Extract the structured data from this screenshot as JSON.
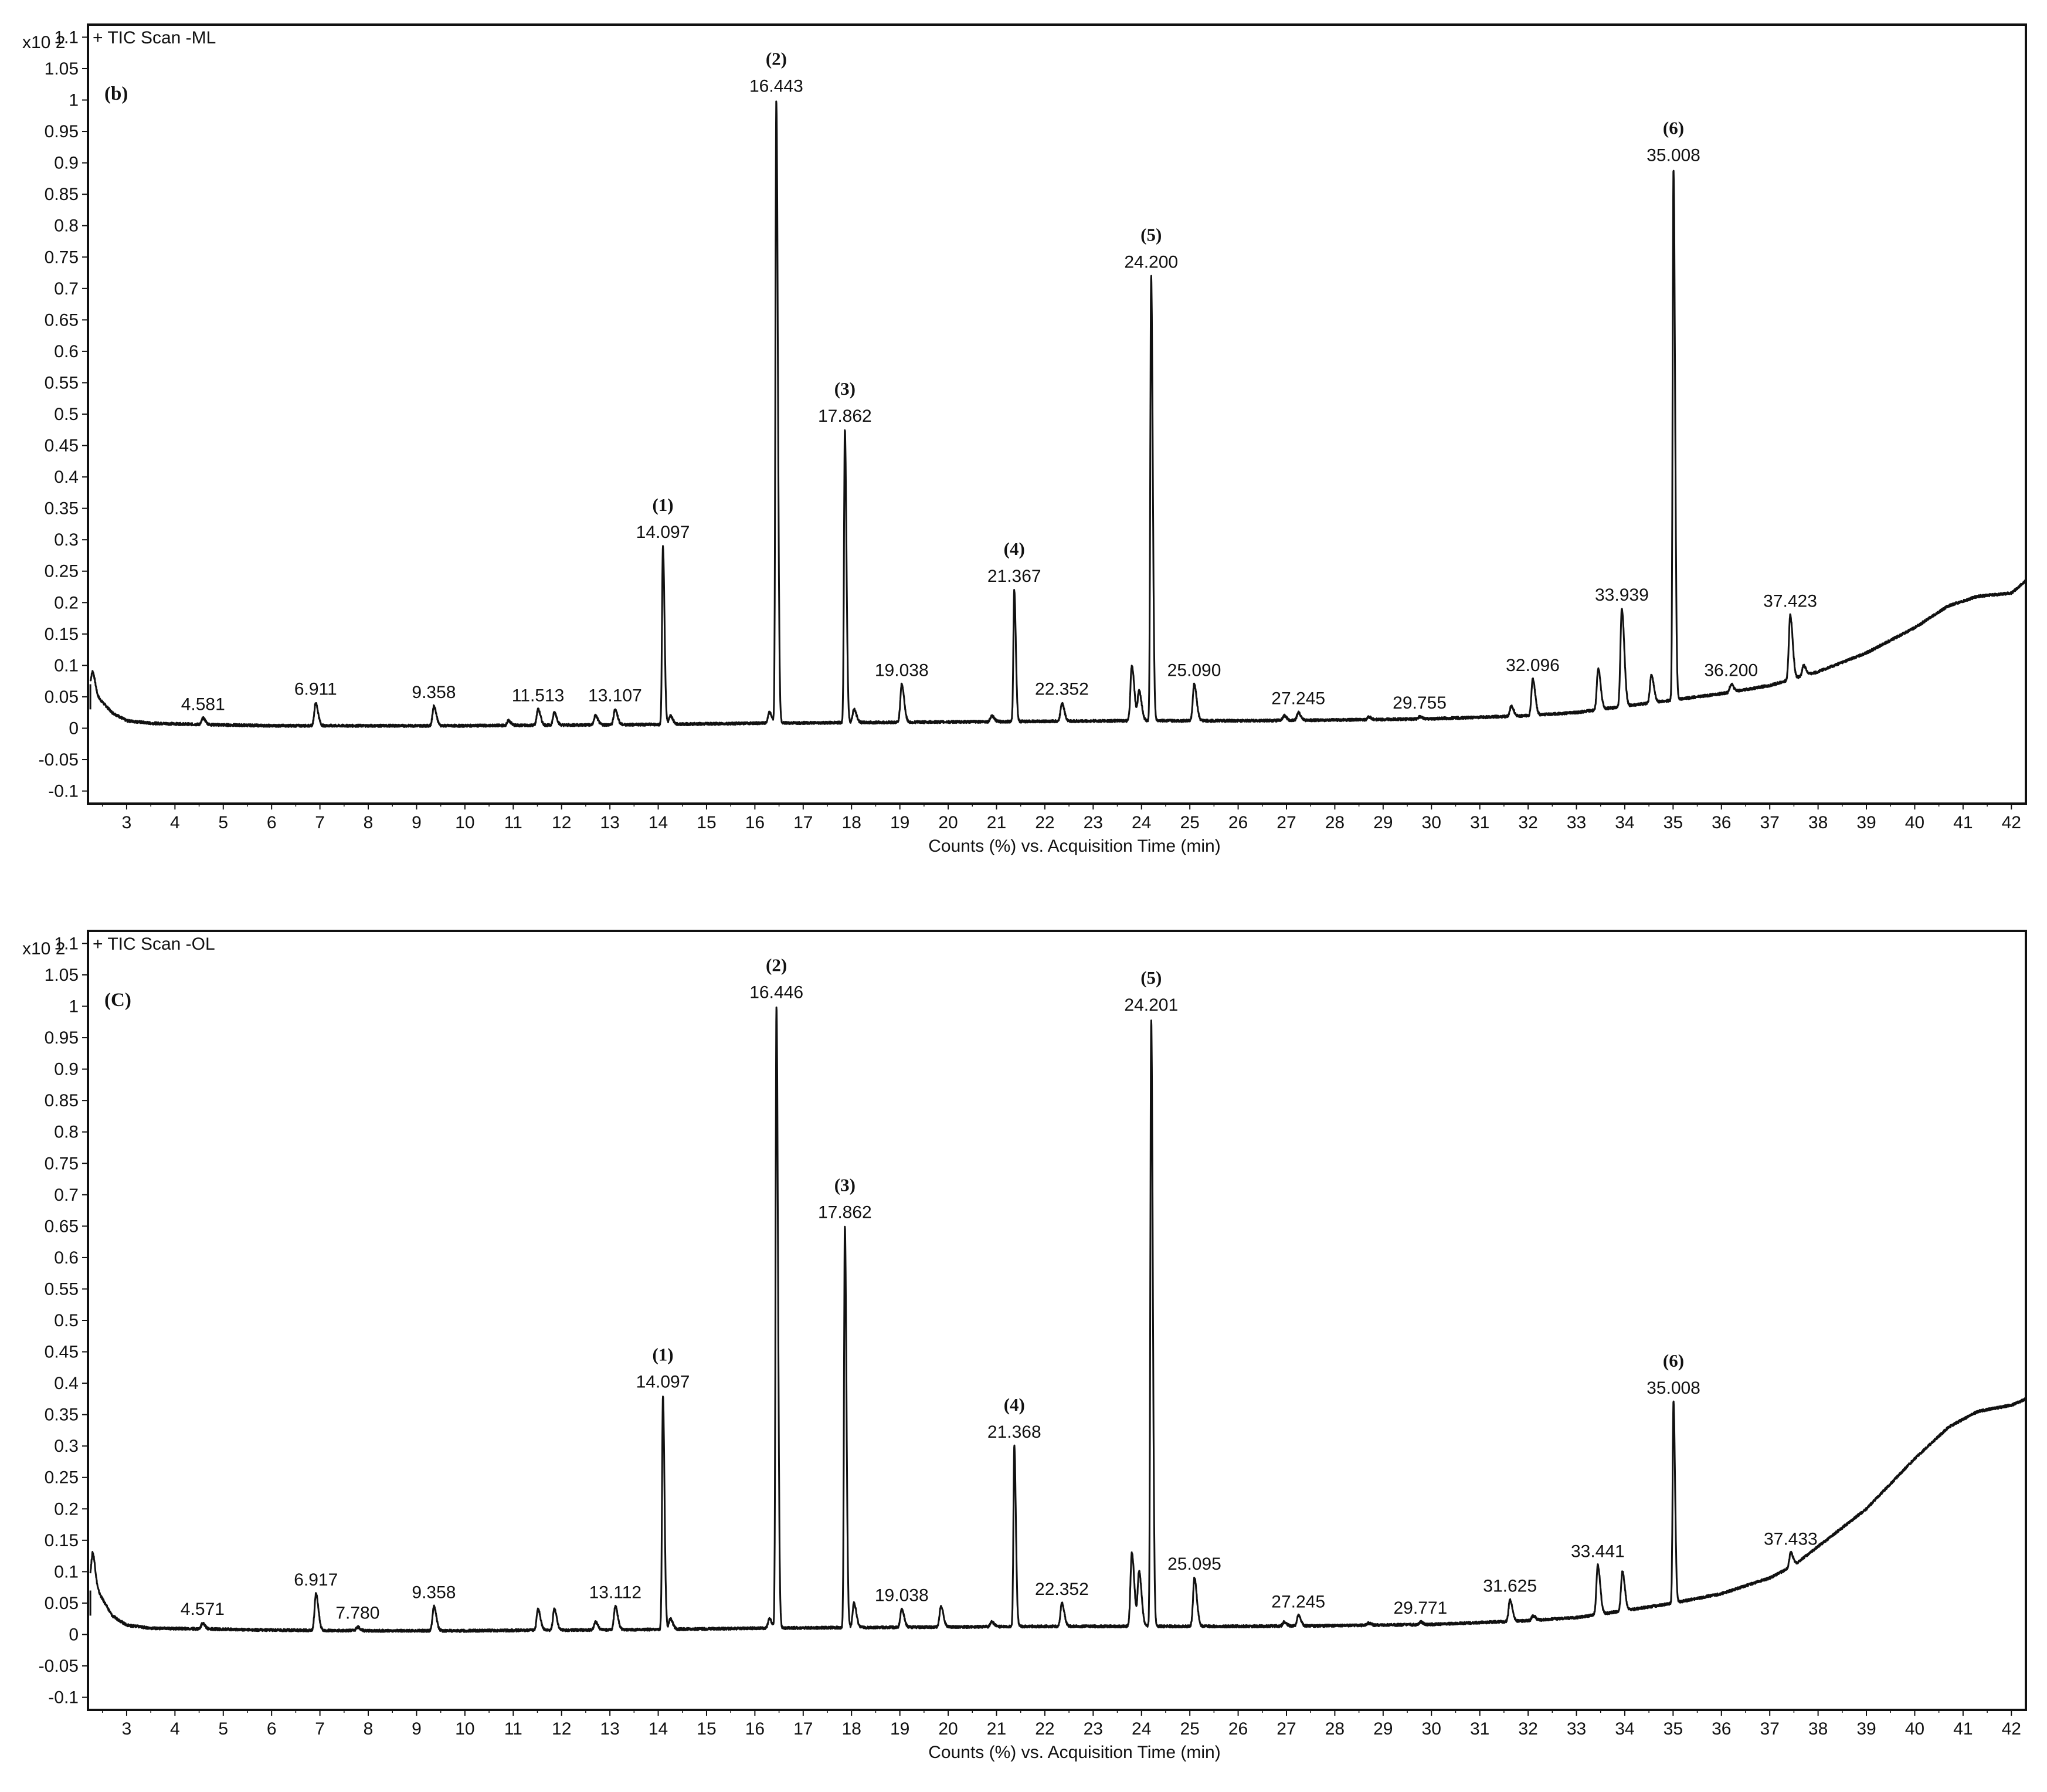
{
  "chart_data": [
    {
      "type": "line",
      "panel_tag": "(b)",
      "series_title": "+ TIC Scan -ML",
      "y_multiplier": "x10 2",
      "xlabel": "Counts (%) vs. Acquisition Time (min)",
      "xlim": [
        2.2,
        42.3
      ],
      "ylim": [
        -0.12,
        1.12
      ],
      "x_ticks": [
        3,
        4,
        5,
        6,
        7,
        8,
        9,
        10,
        11,
        12,
        13,
        14,
        15,
        16,
        17,
        18,
        19,
        20,
        21,
        22,
        23,
        24,
        25,
        26,
        27,
        28,
        29,
        30,
        31,
        32,
        33,
        34,
        35,
        36,
        37,
        38,
        39,
        40,
        41,
        42
      ],
      "y_ticks": [
        "1.1",
        "1.05",
        "1",
        "0.95",
        "0.9",
        "0.85",
        "0.8",
        "0.75",
        "0.7",
        "0.65",
        "0.6",
        "0.55",
        "0.5",
        "0.45",
        "0.4",
        "0.35",
        "0.3",
        "0.25",
        "0.2",
        "0.15",
        "0.1",
        "0.05",
        "0",
        "-0.05",
        "-0.1"
      ],
      "baseline": [
        [
          2.25,
          0.07
        ],
        [
          2.4,
          0.05
        ],
        [
          2.7,
          0.025
        ],
        [
          3.0,
          0.012
        ],
        [
          3.5,
          0.008
        ],
        [
          4.5,
          0.006
        ],
        [
          6.0,
          0.004
        ],
        [
          8.0,
          0.004
        ],
        [
          10.0,
          0.004
        ],
        [
          12.0,
          0.005
        ],
        [
          14.0,
          0.006
        ],
        [
          16.0,
          0.008
        ],
        [
          18.0,
          0.009
        ],
        [
          20.0,
          0.01
        ],
        [
          22.0,
          0.011
        ],
        [
          24.0,
          0.012
        ],
        [
          26.0,
          0.012
        ],
        [
          28.0,
          0.013
        ],
        [
          30.0,
          0.015
        ],
        [
          32.0,
          0.02
        ],
        [
          33.0,
          0.025
        ],
        [
          34.0,
          0.035
        ],
        [
          35.0,
          0.045
        ],
        [
          36.0,
          0.055
        ],
        [
          37.0,
          0.068
        ],
        [
          38.0,
          0.09
        ],
        [
          39.0,
          0.12
        ],
        [
          40.0,
          0.16
        ],
        [
          40.7,
          0.195
        ],
        [
          41.3,
          0.21
        ],
        [
          42.0,
          0.215
        ],
        [
          42.3,
          0.235
        ]
      ],
      "peaks": [
        {
          "x": 2.3,
          "y": 0.09
        },
        {
          "x": 4.581,
          "y": 0.016
        },
        {
          "x": 6.911,
          "y": 0.04
        },
        {
          "x": 9.358,
          "y": 0.035
        },
        {
          "x": 10.9,
          "y": 0.012
        },
        {
          "x": 11.513,
          "y": 0.03
        },
        {
          "x": 11.85,
          "y": 0.025
        },
        {
          "x": 12.7,
          "y": 0.02
        },
        {
          "x": 13.107,
          "y": 0.03
        },
        {
          "x": 14.097,
          "y": 0.29
        },
        {
          "x": 14.25,
          "y": 0.02
        },
        {
          "x": 16.3,
          "y": 0.025
        },
        {
          "x": 16.443,
          "y": 1.0
        },
        {
          "x": 17.862,
          "y": 0.475
        },
        {
          "x": 18.05,
          "y": 0.03
        },
        {
          "x": 19.038,
          "y": 0.07
        },
        {
          "x": 20.9,
          "y": 0.02
        },
        {
          "x": 21.367,
          "y": 0.22
        },
        {
          "x": 22.352,
          "y": 0.04
        },
        {
          "x": 23.8,
          "y": 0.1
        },
        {
          "x": 23.95,
          "y": 0.06
        },
        {
          "x": 24.2,
          "y": 0.72
        },
        {
          "x": 25.09,
          "y": 0.07
        },
        {
          "x": 26.95,
          "y": 0.02
        },
        {
          "x": 27.245,
          "y": 0.025
        },
        {
          "x": 28.7,
          "y": 0.018
        },
        {
          "x": 29.755,
          "y": 0.018
        },
        {
          "x": 31.65,
          "y": 0.035
        },
        {
          "x": 32.096,
          "y": 0.078
        },
        {
          "x": 33.45,
          "y": 0.095
        },
        {
          "x": 33.939,
          "y": 0.19
        },
        {
          "x": 34.55,
          "y": 0.085
        },
        {
          "x": 35.008,
          "y": 0.89
        },
        {
          "x": 36.2,
          "y": 0.07
        },
        {
          "x": 37.423,
          "y": 0.18
        },
        {
          "x": 37.7,
          "y": 0.1
        }
      ],
      "labels": [
        {
          "x": 4.581,
          "y": 0.016,
          "text": "4.581"
        },
        {
          "x": 6.911,
          "y": 0.04,
          "text": "6.911"
        },
        {
          "x": 9.358,
          "y": 0.035,
          "text": "9.358"
        },
        {
          "x": 11.513,
          "y": 0.03,
          "text": "11.513"
        },
        {
          "x": 13.107,
          "y": 0.03,
          "text": "13.107"
        },
        {
          "x": 14.097,
          "y": 0.29,
          "text": "14.097",
          "id": "(1)"
        },
        {
          "x": 16.443,
          "y": 1.0,
          "text": "16.443",
          "id": "(2)"
        },
        {
          "x": 17.862,
          "y": 0.475,
          "text": "17.862",
          "id": "(3)"
        },
        {
          "x": 19.038,
          "y": 0.07,
          "text": "19.038"
        },
        {
          "x": 21.367,
          "y": 0.22,
          "text": "21.367",
          "id": "(4)"
        },
        {
          "x": 22.352,
          "y": 0.04,
          "text": "22.352"
        },
        {
          "x": 24.2,
          "y": 0.72,
          "text": "24.200",
          "id": "(5)"
        },
        {
          "x": 25.09,
          "y": 0.07,
          "text": "25.090"
        },
        {
          "x": 27.245,
          "y": 0.025,
          "text": "27.245"
        },
        {
          "x": 29.755,
          "y": 0.018,
          "text": "29.755"
        },
        {
          "x": 32.096,
          "y": 0.078,
          "text": "32.096"
        },
        {
          "x": 33.939,
          "y": 0.19,
          "text": "33.939"
        },
        {
          "x": 35.008,
          "y": 0.89,
          "text": "35.008",
          "id": "(6)"
        },
        {
          "x": 36.2,
          "y": 0.07,
          "text": "36.200"
        },
        {
          "x": 37.423,
          "y": 0.18,
          "text": "37.423"
        }
      ]
    },
    {
      "type": "line",
      "panel_tag": "(C)",
      "series_title": "+ TIC Scan -OL",
      "y_multiplier": "x10 2",
      "xlabel": "Counts (%) vs. Acquisition Time (min)",
      "xlim": [
        2.2,
        42.3
      ],
      "ylim": [
        -0.12,
        1.12
      ],
      "x_ticks": [
        3,
        4,
        5,
        6,
        7,
        8,
        9,
        10,
        11,
        12,
        13,
        14,
        15,
        16,
        17,
        18,
        19,
        20,
        21,
        22,
        23,
        24,
        25,
        26,
        27,
        28,
        29,
        30,
        31,
        32,
        33,
        34,
        35,
        36,
        37,
        38,
        39,
        40,
        41,
        42
      ],
      "y_ticks": [
        "1.1",
        "1.05",
        "1",
        "0.95",
        "0.9",
        "0.85",
        "0.8",
        "0.75",
        "0.7",
        "0.65",
        "0.6",
        "0.55",
        "0.5",
        "0.45",
        "0.4",
        "0.35",
        "0.3",
        "0.25",
        "0.2",
        "0.15",
        "0.1",
        "0.05",
        "0",
        "-0.05",
        "-0.1"
      ],
      "baseline": [
        [
          2.25,
          0.09
        ],
        [
          2.4,
          0.07
        ],
        [
          2.7,
          0.03
        ],
        [
          3.0,
          0.015
        ],
        [
          3.5,
          0.01
        ],
        [
          4.5,
          0.009
        ],
        [
          6.0,
          0.007
        ],
        [
          8.0,
          0.006
        ],
        [
          10.0,
          0.006
        ],
        [
          12.0,
          0.007
        ],
        [
          14.0,
          0.008
        ],
        [
          16.0,
          0.01
        ],
        [
          18.0,
          0.011
        ],
        [
          20.0,
          0.012
        ],
        [
          22.0,
          0.013
        ],
        [
          24.0,
          0.013
        ],
        [
          26.0,
          0.013
        ],
        [
          28.0,
          0.014
        ],
        [
          30.0,
          0.016
        ],
        [
          32.0,
          0.022
        ],
        [
          33.0,
          0.027
        ],
        [
          34.0,
          0.038
        ],
        [
          35.0,
          0.05
        ],
        [
          36.0,
          0.065
        ],
        [
          37.0,
          0.09
        ],
        [
          37.5,
          0.11
        ],
        [
          38.0,
          0.14
        ],
        [
          39.0,
          0.2
        ],
        [
          40.0,
          0.28
        ],
        [
          40.7,
          0.33
        ],
        [
          41.3,
          0.355
        ],
        [
          42.0,
          0.365
        ],
        [
          42.3,
          0.375
        ]
      ],
      "peaks": [
        {
          "x": 2.3,
          "y": 0.13
        },
        {
          "x": 4.571,
          "y": 0.018
        },
        {
          "x": 6.917,
          "y": 0.065
        },
        {
          "x": 7.78,
          "y": 0.012
        },
        {
          "x": 9.358,
          "y": 0.045
        },
        {
          "x": 11.513,
          "y": 0.04
        },
        {
          "x": 11.85,
          "y": 0.04
        },
        {
          "x": 12.7,
          "y": 0.02
        },
        {
          "x": 13.112,
          "y": 0.045
        },
        {
          "x": 14.097,
          "y": 0.38
        },
        {
          "x": 14.25,
          "y": 0.025
        },
        {
          "x": 16.3,
          "y": 0.025
        },
        {
          "x": 16.446,
          "y": 1.0
        },
        {
          "x": 17.862,
          "y": 0.65
        },
        {
          "x": 18.05,
          "y": 0.05
        },
        {
          "x": 19.038,
          "y": 0.04
        },
        {
          "x": 19.85,
          "y": 0.045
        },
        {
          "x": 20.9,
          "y": 0.02
        },
        {
          "x": 21.368,
          "y": 0.3
        },
        {
          "x": 22.352,
          "y": 0.05
        },
        {
          "x": 23.8,
          "y": 0.13
        },
        {
          "x": 23.95,
          "y": 0.1
        },
        {
          "x": 24.201,
          "y": 0.98
        },
        {
          "x": 25.095,
          "y": 0.09
        },
        {
          "x": 26.95,
          "y": 0.02
        },
        {
          "x": 27.245,
          "y": 0.03
        },
        {
          "x": 28.7,
          "y": 0.018
        },
        {
          "x": 29.771,
          "y": 0.02
        },
        {
          "x": 31.625,
          "y": 0.055
        },
        {
          "x": 32.1,
          "y": 0.03
        },
        {
          "x": 33.441,
          "y": 0.11
        },
        {
          "x": 33.95,
          "y": 0.1
        },
        {
          "x": 35.008,
          "y": 0.37
        },
        {
          "x": 37.433,
          "y": 0.13
        }
      ],
      "labels": [
        {
          "x": 4.571,
          "y": 0.018,
          "text": "4.571"
        },
        {
          "x": 6.917,
          "y": 0.065,
          "text": "6.917"
        },
        {
          "x": 7.78,
          "y": 0.012,
          "text": "7.780"
        },
        {
          "x": 9.358,
          "y": 0.045,
          "text": "9.358"
        },
        {
          "x": 13.112,
          "y": 0.045,
          "text": "13.112"
        },
        {
          "x": 14.097,
          "y": 0.38,
          "text": "14.097",
          "id": "(1)"
        },
        {
          "x": 16.446,
          "y": 1.0,
          "text": "16.446",
          "id": "(2)"
        },
        {
          "x": 17.862,
          "y": 0.65,
          "text": "17.862",
          "id": "(3)"
        },
        {
          "x": 19.038,
          "y": 0.04,
          "text": "19.038"
        },
        {
          "x": 21.368,
          "y": 0.3,
          "text": "21.368",
          "id": "(4)"
        },
        {
          "x": 22.352,
          "y": 0.05,
          "text": "22.352"
        },
        {
          "x": 24.201,
          "y": 0.98,
          "text": "24.201",
          "id": "(5)"
        },
        {
          "x": 25.095,
          "y": 0.09,
          "text": "25.095"
        },
        {
          "x": 27.245,
          "y": 0.03,
          "text": "27.245"
        },
        {
          "x": 29.771,
          "y": 0.02,
          "text": "29.771"
        },
        {
          "x": 31.625,
          "y": 0.055,
          "text": "31.625"
        },
        {
          "x": 33.441,
          "y": 0.11,
          "text": "33.441"
        },
        {
          "x": 35.008,
          "y": 0.37,
          "text": "35.008",
          "id": "(6)"
        },
        {
          "x": 37.433,
          "y": 0.13,
          "text": "37.433"
        }
      ]
    }
  ]
}
